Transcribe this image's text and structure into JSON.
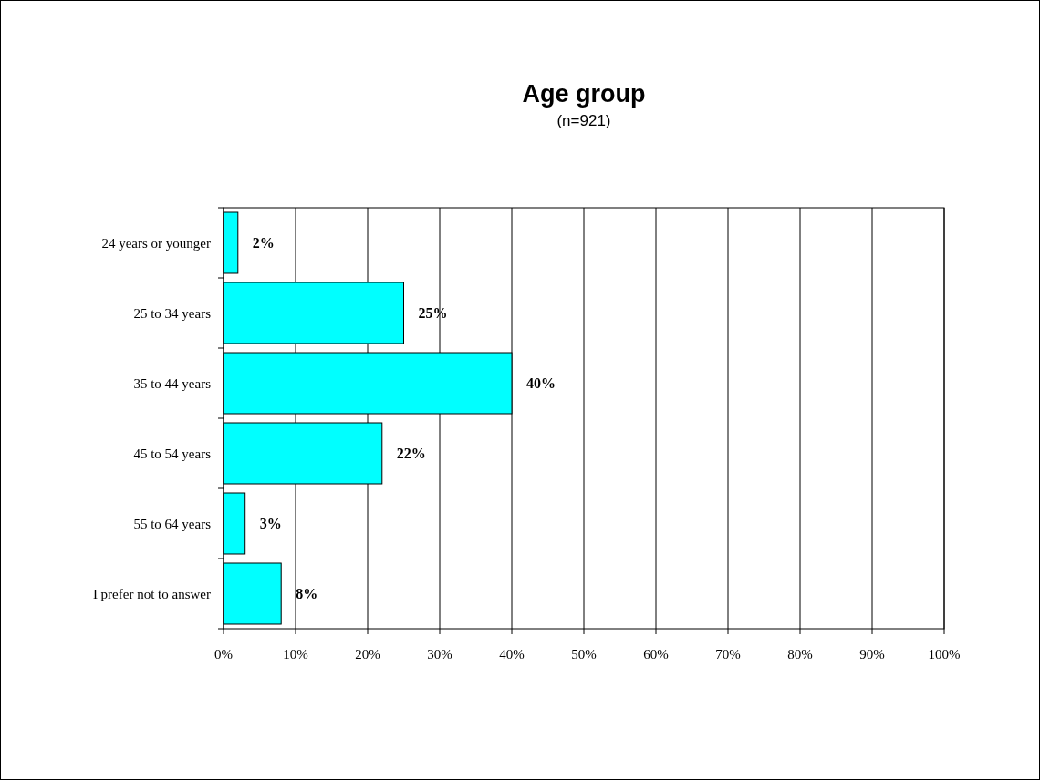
{
  "chart_data": {
    "type": "bar",
    "orientation": "horizontal",
    "title": "Age group",
    "subtitle": "(n=921)",
    "categories": [
      "24 years or younger",
      "25 to 34 years",
      "35 to 44 years",
      "45 to 54 years",
      "55 to 64 years",
      "I prefer not to answer"
    ],
    "values": [
      2,
      25,
      40,
      22,
      3,
      8
    ],
    "color": "#00ffff",
    "value_labels": [
      "2%",
      "25%",
      "40%",
      "22%",
      "3%",
      "8%"
    ],
    "xlim": [
      0,
      100
    ],
    "xticks": [
      {
        "value": 0,
        "label": "0%"
      },
      {
        "value": 10,
        "label": "10%"
      },
      {
        "value": 20,
        "label": "20%"
      },
      {
        "value": 30,
        "label": "30%"
      },
      {
        "value": 40,
        "label": "40%"
      },
      {
        "value": 50,
        "label": "50%"
      },
      {
        "value": 60,
        "label": "60%"
      },
      {
        "value": 70,
        "label": "70%"
      },
      {
        "value": 80,
        "label": "80%"
      },
      {
        "value": 90,
        "label": "90%"
      },
      {
        "value": 100,
        "label": "100%"
      }
    ],
    "grid": "x"
  }
}
